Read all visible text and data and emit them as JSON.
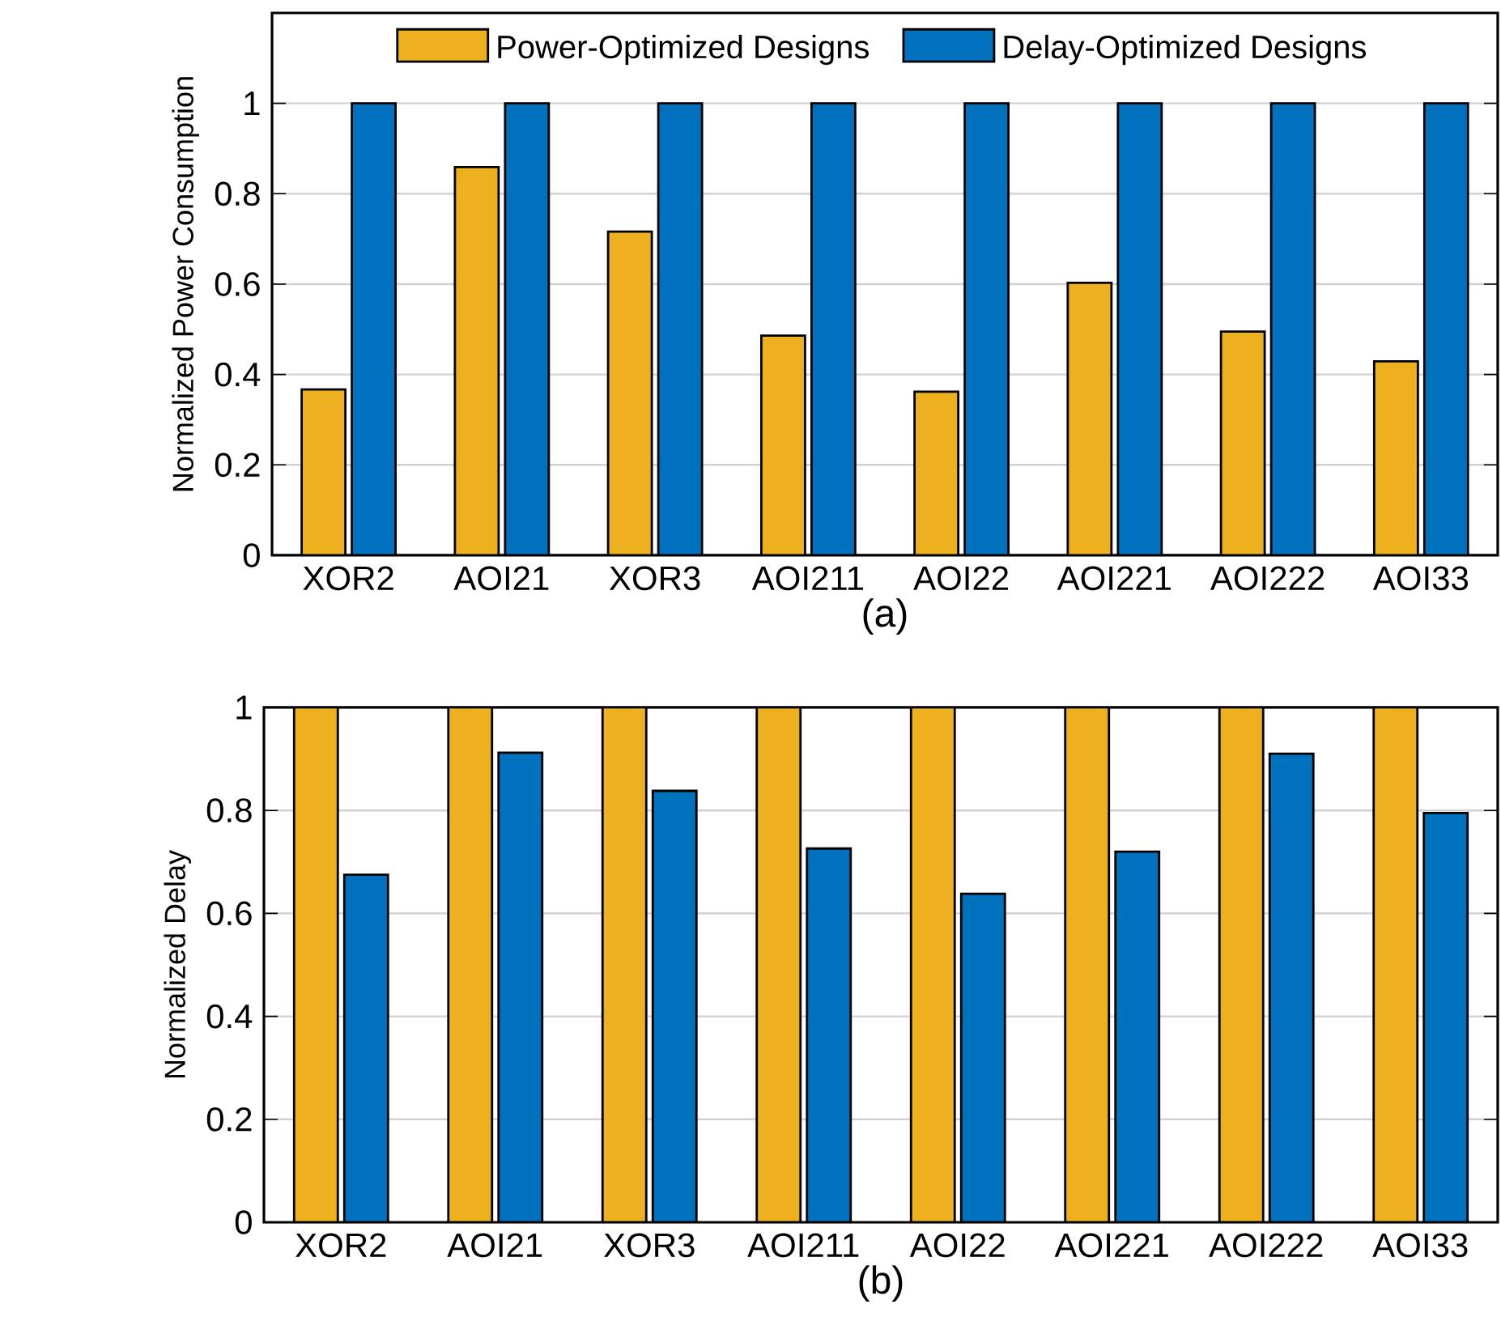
{
  "chart_data": [
    {
      "type": "bar",
      "xlabel": "(a)",
      "ylabel": "Normalized Power Consumption",
      "categories": [
        "XOR2",
        "AOI21",
        "XOR3",
        "AOI211",
        "AOI22",
        "AOI221",
        "AOI222",
        "AOI33"
      ],
      "series": [
        {
          "name": "Power-Optimized Designs",
          "color": "#edb120",
          "values": [
            0.367,
            0.859,
            0.716,
            0.486,
            0.362,
            0.603,
            0.495,
            0.429
          ]
        },
        {
          "name": "Delay-Optimized Designs",
          "color": "#0072bd",
          "values": [
            1,
            1,
            1,
            1,
            1,
            1,
            1,
            1
          ]
        }
      ],
      "ylim": [
        0,
        1.2
      ],
      "yticks": [
        0,
        0.2,
        0.4,
        0.6,
        0.8,
        1
      ],
      "grid": "y",
      "legend": "top"
    },
    {
      "type": "bar",
      "xlabel": "(b)",
      "ylabel": "Normalized Delay",
      "categories": [
        "XOR2",
        "AOI21",
        "XOR3",
        "AOI211",
        "AOI22",
        "AOI221",
        "AOI222",
        "AOI33"
      ],
      "series": [
        {
          "color": "#edb120",
          "values": [
            1,
            1,
            1,
            1,
            1,
            1,
            1,
            1
          ]
        },
        {
          "color": "#0072bd",
          "values": [
            0.675,
            0.912,
            0.838,
            0.726,
            0.638,
            0.72,
            0.91,
            0.795
          ]
        }
      ],
      "ylim": [
        0,
        1
      ],
      "yticks": [
        0,
        0.2,
        0.4,
        0.6,
        0.8,
        1
      ],
      "grid": "y"
    }
  ]
}
